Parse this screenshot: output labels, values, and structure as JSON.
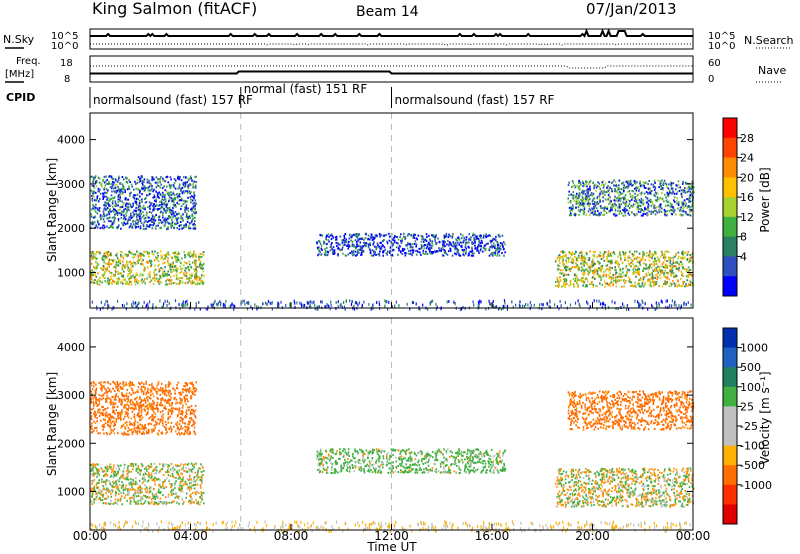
{
  "header": {
    "station": "King Salmon (fitACF)",
    "beam": "Beam 14",
    "date": "07/Jan/2013"
  },
  "top_panels": {
    "nsky_label": "N.Sky",
    "nsearch_label": "N.Search",
    "nsky_ticks": [
      "10^5",
      "10^0"
    ],
    "nsearch_ticks": [
      "10^5",
      "10^0"
    ],
    "freq_label_1": "Freq.",
    "freq_label_2": "[MHz]",
    "freq_ticks": [
      "18",
      "8"
    ],
    "nave_label": "Nave",
    "nave_ticks": [
      "60",
      "0"
    ],
    "cpid_label": "CPID",
    "cpid_segments": [
      {
        "label": "normalsound (fast) 157 RF",
        "start_h": 0,
        "end_h": 6
      },
      {
        "label": "normal (fast) 151 RF",
        "start_h": 6,
        "end_h": 12
      },
      {
        "label": "normalsound (fast) 157 RF",
        "start_h": 12,
        "end_h": 24
      }
    ]
  },
  "colorbars": {
    "power": {
      "label": "Power [dB]",
      "ticks": [
        "28",
        "24",
        "20",
        "16",
        "12",
        "8",
        "4"
      ],
      "colors": [
        "#ff0000",
        "#ff4400",
        "#ff8c00",
        "#ffc000",
        "#a8d030",
        "#40b040",
        "#2a8060",
        "#3050c0",
        "#0000ff"
      ]
    },
    "velocity": {
      "label": "Velocity [m s⁻¹]",
      "ticks": [
        "1000",
        "500",
        "100",
        "25",
        "-25",
        "-100",
        "-500",
        "-1000"
      ],
      "colors": [
        "#0030b0",
        "#2060c0",
        "#208060",
        "#40b040",
        "#c0c0c0",
        "#c0c0c0",
        "#ffb000",
        "#ff7000",
        "#ff3000",
        "#e00000"
      ]
    }
  },
  "chart_data": [
    {
      "type": "heatmap",
      "title": "Power",
      "ylabel": "Slant Range [km]",
      "ylim": [
        200,
        4600
      ],
      "yticks": [
        "1000",
        "2000",
        "3000",
        "4000"
      ],
      "xlim": [
        0,
        24
      ],
      "colorbar_label": "Power [dB]",
      "regions": [
        {
          "x": [
            0,
            4.5
          ],
          "y": [
            750,
            1500
          ],
          "level": 16
        },
        {
          "x": [
            0,
            4.2
          ],
          "y": [
            2000,
            3200
          ],
          "level": 8
        },
        {
          "x": [
            9,
            16.5
          ],
          "y": [
            1400,
            1900
          ],
          "level": 6
        },
        {
          "x": [
            18.5,
            24
          ],
          "y": [
            700,
            1500
          ],
          "level": 16
        },
        {
          "x": [
            19,
            24
          ],
          "y": [
            2300,
            3100
          ],
          "level": 10
        }
      ]
    },
    {
      "type": "heatmap",
      "title": "Velocity",
      "ylabel": "Slant Range [km]",
      "ylim": [
        200,
        4600
      ],
      "yticks": [
        "1000",
        "2000",
        "3000",
        "4000"
      ],
      "xlim": [
        0,
        24
      ],
      "colorbar_label": "Velocity [m s⁻¹]",
      "regions": [
        {
          "x": [
            0,
            4.5
          ],
          "y": [
            750,
            1600
          ],
          "velocity": 0
        },
        {
          "x": [
            0,
            4.2
          ],
          "y": [
            2200,
            3300
          ],
          "velocity": -300
        },
        {
          "x": [
            9,
            16.5
          ],
          "y": [
            1400,
            1900
          ],
          "velocity": 100
        },
        {
          "x": [
            18.5,
            24
          ],
          "y": [
            700,
            1500
          ],
          "velocity": 0
        },
        {
          "x": [
            19,
            24
          ],
          "y": [
            2300,
            3100
          ],
          "velocity": -300
        }
      ]
    }
  ],
  "xaxis": {
    "ticks": [
      "00:00",
      "04:00",
      "08:00",
      "12:00",
      "16:00",
      "20:00",
      "00:00"
    ],
    "label": "Time UT"
  }
}
